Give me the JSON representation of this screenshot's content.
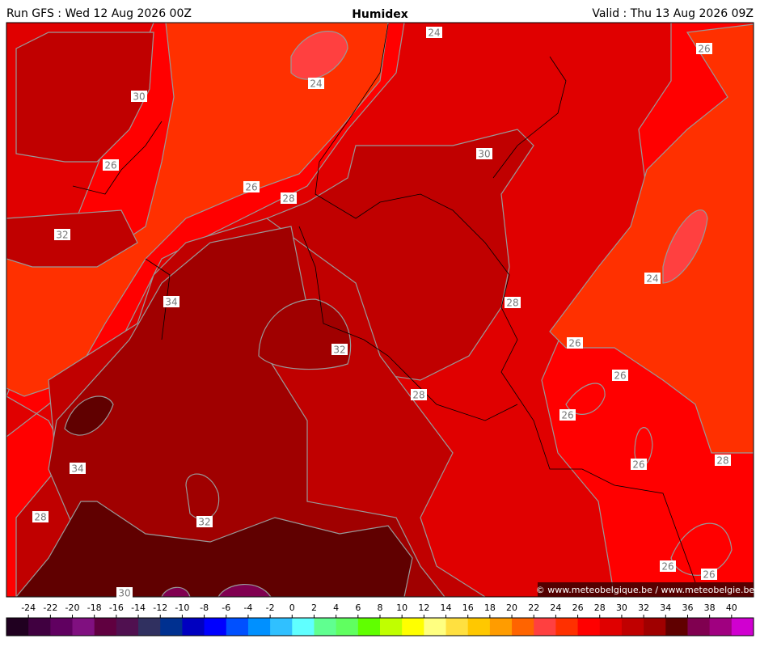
{
  "header": {
    "left": "Run GFS : Wed 12 Aug 2026 00Z",
    "title": "Humidex",
    "right": "Valid : Thu 13 Aug 2026 09Z"
  },
  "map": {
    "contour_labels": [
      "24",
      "24",
      "26",
      "30",
      "26",
      "26",
      "28",
      "30",
      "32",
      "24",
      "34",
      "28",
      "26",
      "32",
      "26",
      "28",
      "26",
      "34",
      "26",
      "28",
      "28",
      "32",
      "26",
      "26",
      "30"
    ],
    "copyright": "© www.meteobelgique.be / www.meteobelgie.be"
  },
  "colorbar": {
    "ticks": [
      -24,
      -22,
      -20,
      -18,
      -16,
      -14,
      -12,
      -10,
      -8,
      -6,
      -4,
      -2,
      0,
      2,
      4,
      6,
      8,
      10,
      12,
      14,
      16,
      18,
      20,
      22,
      24,
      26,
      28,
      30,
      32,
      34,
      36,
      38,
      40
    ],
    "colors": [
      "#200020",
      "#400040",
      "#600060",
      "#801080",
      "#600040",
      "#501050",
      "#303060",
      "#003090",
      "#0000c0",
      "#0000ff",
      "#0050ff",
      "#0090ff",
      "#30c0ff",
      "#60ffff",
      "#60ff90",
      "#60ff60",
      "#60ff00",
      "#c0ff00",
      "#ffff00",
      "#ffff80",
      "#ffe040",
      "#ffc800",
      "#ff9c00",
      "#ff6400",
      "#ff4040",
      "#ff3000",
      "#ff0000",
      "#e00000",
      "#c00000",
      "#a00000",
      "#600000",
      "#800050",
      "#a00080",
      "#d000d0"
    ]
  }
}
